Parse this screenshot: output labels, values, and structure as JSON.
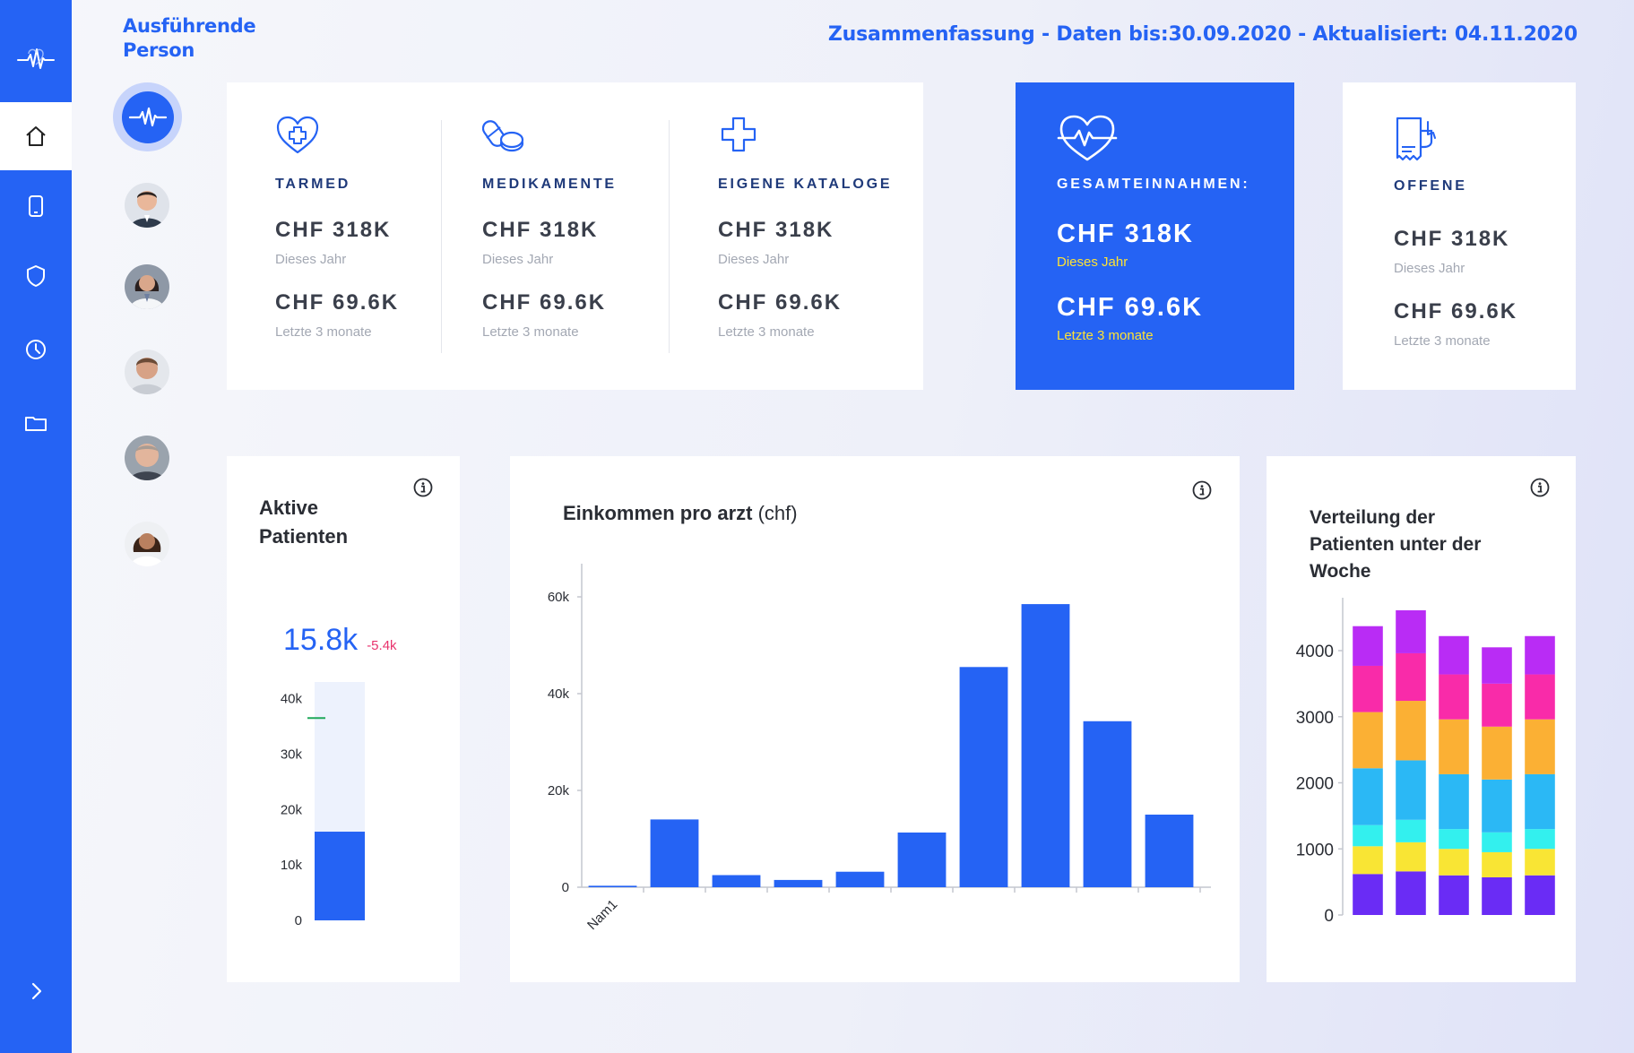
{
  "header": {
    "person_title": "Ausführende Person",
    "summary": "Zusammenfassung - Daten bis:30.09.2020 - Aktualisiert: 04.11.2020"
  },
  "sidebar": {
    "items": [
      {
        "icon": "home-icon",
        "active": true
      },
      {
        "icon": "tablet-icon",
        "active": false
      },
      {
        "icon": "shield-icon",
        "active": false
      },
      {
        "icon": "clock-icon",
        "active": false
      },
      {
        "icon": "folder-icon",
        "active": false
      }
    ],
    "expand_icon": "chevron-right-icon"
  },
  "colors": {
    "primary": "#2563f4",
    "highlight_yellow": "#ffe233",
    "negative": "#e8336d"
  },
  "stats": {
    "tarmed": {
      "label": "TARMED",
      "value_year": "CHF 318K",
      "caption_year": "Dieses Jahr",
      "value_3m": "CHF 69.6K",
      "caption_3m": "Letzte 3 monate"
    },
    "medikamente": {
      "label": "MEDIKAMENTE",
      "value_year": "CHF 318K",
      "caption_year": "Dieses Jahr",
      "value_3m": "CHF 69.6K",
      "caption_3m": "Letzte 3 monate"
    },
    "kataloge": {
      "label": "EIGENE KATALOGE",
      "value_year": "CHF 318K",
      "caption_year": "Dieses Jahr",
      "value_3m": "CHF 69.6K",
      "caption_3m": "Letzte 3 monate"
    },
    "gesamt": {
      "label": "GESAMTEINNAHMEN:",
      "value_year": "CHF 318K",
      "caption_year": "Dieses Jahr",
      "value_3m": "CHF 69.6K",
      "caption_3m": "Letzte 3 monate"
    },
    "offene": {
      "label": "OFFENE",
      "value_year": "CHF 318K",
      "caption_year": "Dieses Jahr",
      "value_3m": "CHF 69.6K",
      "caption_3m": "Letzte 3 monate"
    }
  },
  "patients": {
    "title_line1": "Aktive",
    "title_line2": "Patienten",
    "value": "15.8k",
    "delta": "-5.4k"
  },
  "income": {
    "title_bold": "Einkommen pro arzt",
    "title_unit": "(chf)"
  },
  "weekly": {
    "title_line1": "Verteilung der",
    "title_line2": "Patienten unter der",
    "title_line3": "Woche"
  },
  "chart_data": [
    {
      "type": "bar",
      "title": "Aktive Patienten",
      "categories": [
        ""
      ],
      "values": [
        16000
      ],
      "capacity": 43000,
      "target": 36500,
      "ylim": [
        0,
        43000
      ],
      "yticks": [
        "0",
        "10k",
        "20k",
        "30k",
        "40k"
      ],
      "ytick_values": [
        0,
        10000,
        20000,
        30000,
        40000
      ]
    },
    {
      "type": "bar",
      "title": "Einkommen pro arzt (chf)",
      "categories": [
        "Nam1",
        "",
        "",
        "",
        "",
        "",
        "",
        "",
        "",
        ""
      ],
      "values": [
        300,
        14000,
        2500,
        1500,
        3200,
        11300,
        45500,
        58500,
        34300,
        15000
      ],
      "ylim": [
        0,
        65000
      ],
      "yticks": [
        "0",
        "20k",
        "40k",
        "60k"
      ],
      "ytick_values": [
        0,
        20000,
        40000,
        60000
      ]
    },
    {
      "type": "bar",
      "stacked": true,
      "title": "Verteilung der Patienten unter der Woche",
      "categories": [
        "",
        "",
        "",
        "",
        ""
      ],
      "ylim": [
        0,
        4800
      ],
      "yticks": [
        "0",
        "1000",
        "2000",
        "3000",
        "4000"
      ],
      "ytick_values": [
        0,
        1000,
        2000,
        3000,
        4000
      ],
      "series": [
        {
          "color": "#6a2cf5",
          "values": [
            620,
            660,
            600,
            570,
            600
          ]
        },
        {
          "color": "#f9e534",
          "values": [
            420,
            440,
            400,
            380,
            400
          ]
        },
        {
          "color": "#33f0ee",
          "values": [
            320,
            340,
            300,
            300,
            300
          ]
        },
        {
          "color": "#2bb8f5",
          "values": [
            860,
            900,
            830,
            800,
            830
          ]
        },
        {
          "color": "#fbb034",
          "values": [
            850,
            900,
            830,
            800,
            830
          ]
        },
        {
          "color": "#f92ba9",
          "values": [
            700,
            720,
            680,
            650,
            680
          ]
        },
        {
          "color": "#b92cf5",
          "values": [
            600,
            650,
            580,
            550,
            580
          ]
        }
      ]
    }
  ]
}
